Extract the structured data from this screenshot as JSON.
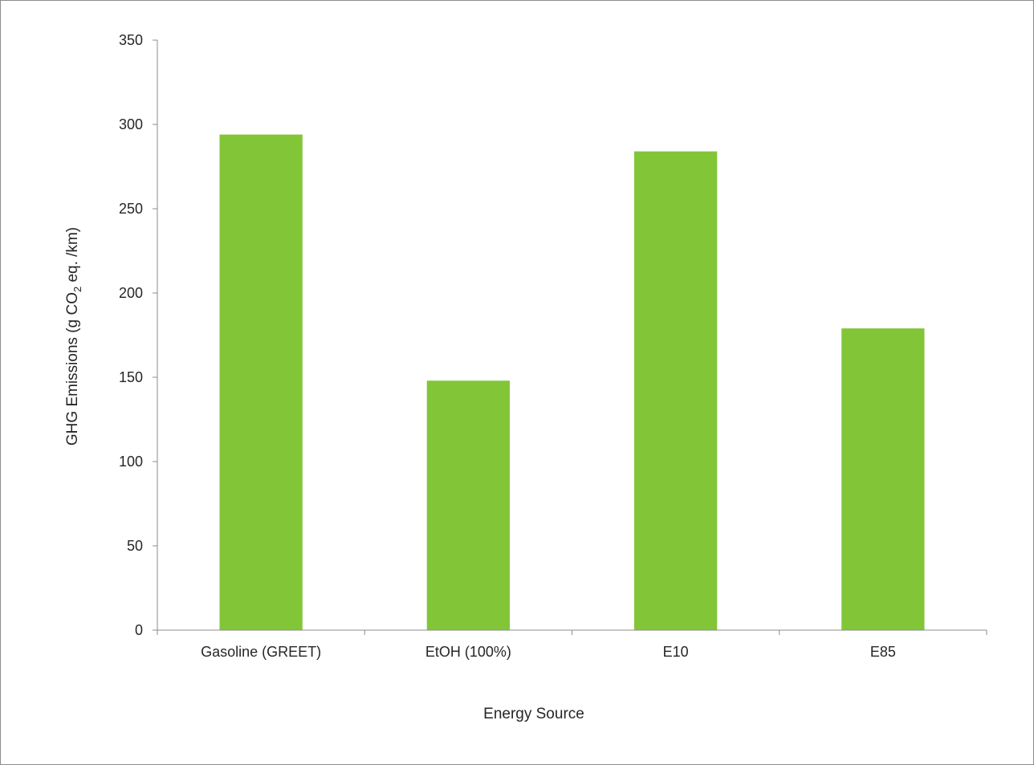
{
  "chart_data": {
    "type": "bar",
    "categories": [
      "Gasoline (GREET)",
      "EtOH (100%)",
      "E10",
      "E85"
    ],
    "values": [
      294,
      148,
      284,
      179
    ],
    "xlabel": "Energy Source",
    "ylabel": {
      "prefix": "GHG Emissions (g CO",
      "subscript": "2",
      "suffix": " eq. /km)"
    },
    "ylim": [
      0,
      350
    ],
    "yticks": [
      "0",
      "50",
      "100",
      "150",
      "200",
      "250",
      "300",
      "350"
    ],
    "grid": false,
    "legend": "none",
    "bar_color": "#82c638",
    "axis_color": "#8c8c8c"
  }
}
